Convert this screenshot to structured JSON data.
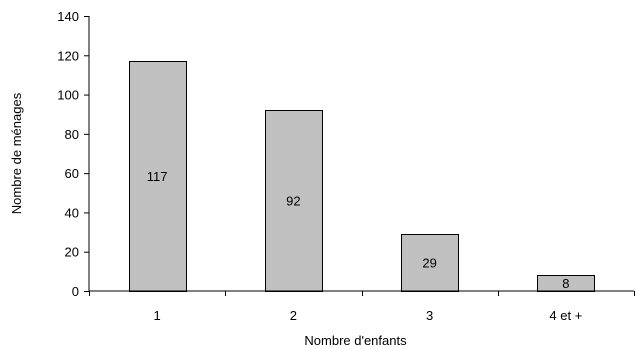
{
  "chart_data": {
    "type": "bar",
    "title": "",
    "xlabel": "Nombre d'enfants",
    "ylabel": "Nombre de ménages",
    "categories": [
      "1",
      "2",
      "3",
      "4 et +"
    ],
    "values": [
      117,
      92,
      29,
      8
    ],
    "data_labels": [
      "117",
      "92",
      "29",
      "8"
    ],
    "ylim": [
      0,
      140
    ],
    "yticks": [
      0,
      20,
      40,
      60,
      80,
      100,
      120,
      140
    ],
    "ytick_labels": [
      "0",
      "20",
      "40",
      "60",
      "80",
      "100",
      "120",
      "140"
    ],
    "grid": false,
    "legend": "none",
    "colors": {
      "bar_fill": "#c0c0c0",
      "bar_stroke": "#000000",
      "axis": "#000000",
      "text": "#000000"
    }
  }
}
